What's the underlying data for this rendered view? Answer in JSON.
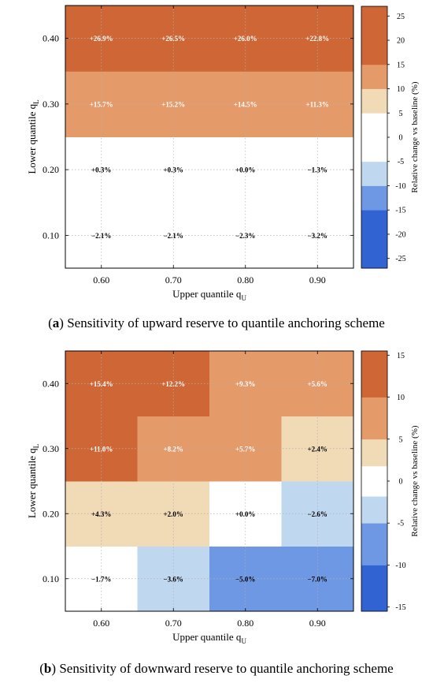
{
  "colors": {
    "pos3": "#cf6635",
    "pos2": "#e59a6a",
    "pos1": "#f1dab6",
    "zero": "#ffffff",
    "neg1": "#c0d7f0",
    "neg2": "#6e98e3",
    "neg3": "#3263d2",
    "dark_text": "#000000",
    "light_text": "#ffffff"
  },
  "chart_data": [
    {
      "type": "heatmap",
      "xlabel": "Upper quantile q",
      "xlabel_sub": "U",
      "ylabel": "Lower quantile q",
      "ylabel_sub": "L",
      "x": [
        "0.60",
        "0.70",
        "0.80",
        "0.90"
      ],
      "y": [
        "0.10",
        "0.20",
        "0.30",
        "0.40"
      ],
      "values": [
        [
          -2.1,
          -2.1,
          -2.3,
          -3.2
        ],
        [
          0.3,
          0.3,
          0.0,
          -1.3
        ],
        [
          15.7,
          15.2,
          14.5,
          11.3
        ],
        [
          26.9,
          26.5,
          26.0,
          22.8
        ]
      ],
      "labels": [
        [
          "−2.1%",
          "−2.1%",
          "−2.3%",
          "−3.2%"
        ],
        [
          "+0.3%",
          "+0.3%",
          "+0.0%",
          "−1.3%"
        ],
        [
          "+15.7%",
          "+15.2%",
          "+14.5%",
          "+11.3%"
        ],
        [
          "+26.9%",
          "+26.5%",
          "+26.0%",
          "+22.8%"
        ]
      ],
      "colorbar": {
        "label": "Relative change vs baseline (%)",
        "range": [
          -27,
          27
        ],
        "levels": [
          -25,
          -20,
          -15,
          -10,
          -5,
          5,
          10,
          15,
          20,
          25
        ],
        "ticks": [
          "-25",
          "-20",
          "-15",
          "-10",
          "-5",
          "0",
          "5",
          "10",
          "15",
          "20",
          "25"
        ],
        "tick_values": [
          -25,
          -20,
          -15,
          -10,
          -5,
          0,
          5,
          10,
          15,
          20,
          25
        ]
      },
      "grid": true,
      "caption_letter": "a",
      "caption_text": " Sensitivity of upward reserve to quantile anchoring scheme"
    },
    {
      "type": "heatmap",
      "xlabel": "Upper quantile q",
      "xlabel_sub": "U",
      "ylabel": "Lower quantile q",
      "ylabel_sub": "L",
      "x": [
        "0.60",
        "0.70",
        "0.80",
        "0.90"
      ],
      "y": [
        "0.10",
        "0.20",
        "0.30",
        "0.40"
      ],
      "values": [
        [
          -1.7,
          -3.6,
          -5.0,
          -7.0
        ],
        [
          4.3,
          2.0,
          0.0,
          -2.6
        ],
        [
          11.0,
          8.2,
          5.7,
          2.4
        ],
        [
          15.4,
          12.2,
          9.3,
          5.6
        ]
      ],
      "labels": [
        [
          "−1.7%",
          "−3.6%",
          "−5.0%",
          "−7.0%"
        ],
        [
          "+4.3%",
          "+2.0%",
          "+0.0%",
          "−2.6%"
        ],
        [
          "+11.0%",
          "+8.2%",
          "+5.7%",
          "+2.4%"
        ],
        [
          "+15.4%",
          "+12.2%",
          "+9.3%",
          "+5.6%"
        ]
      ],
      "colorbar": {
        "label": "Relative change vs baseline (%)",
        "range": [
          -15.5,
          15.5
        ],
        "levels": [
          -15,
          -10,
          -5,
          -1.8,
          1.8,
          5,
          10,
          15
        ],
        "ticks": [
          "-15",
          "-10",
          "-5",
          "0",
          "5",
          "10",
          "15"
        ],
        "tick_values": [
          -15,
          -10,
          -5,
          0,
          5,
          10,
          15
        ]
      },
      "grid": true,
      "caption_letter": "b",
      "caption_text": " Sensitivity of downward reserve to quantile anchoring scheme"
    }
  ]
}
